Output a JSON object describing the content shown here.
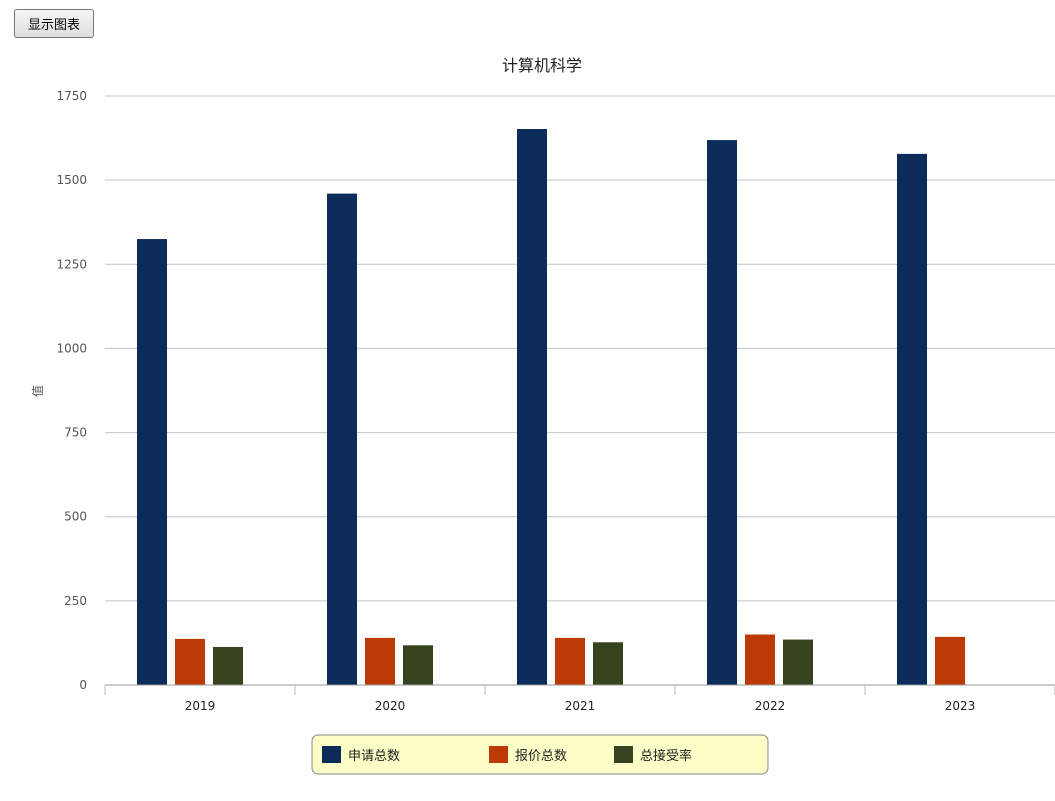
{
  "toolbar": {
    "show_chart_label": "显示图表"
  },
  "chart_data": {
    "type": "bar",
    "title": "计算机科学",
    "xlabel": "",
    "ylabel": "值",
    "ylim": [
      0,
      1750
    ],
    "yticks": [
      0,
      250,
      500,
      750,
      1000,
      1250,
      1500,
      1750
    ],
    "grid": true,
    "legend_position": "bottom",
    "categories": [
      "2019",
      "2020",
      "2021",
      "2022",
      "2023"
    ],
    "series": [
      {
        "name": "申请总数",
        "color": "#0b2b5b",
        "values": [
          1325,
          1460,
          1652,
          1619,
          1578
        ]
      },
      {
        "name": "报价总数",
        "color": "#bc3a06",
        "values": [
          137,
          140,
          140,
          150,
          143
        ]
      },
      {
        "name": "总接受率",
        "color": "#37431f",
        "values": [
          113,
          118,
          127,
          135,
          null
        ]
      }
    ]
  }
}
